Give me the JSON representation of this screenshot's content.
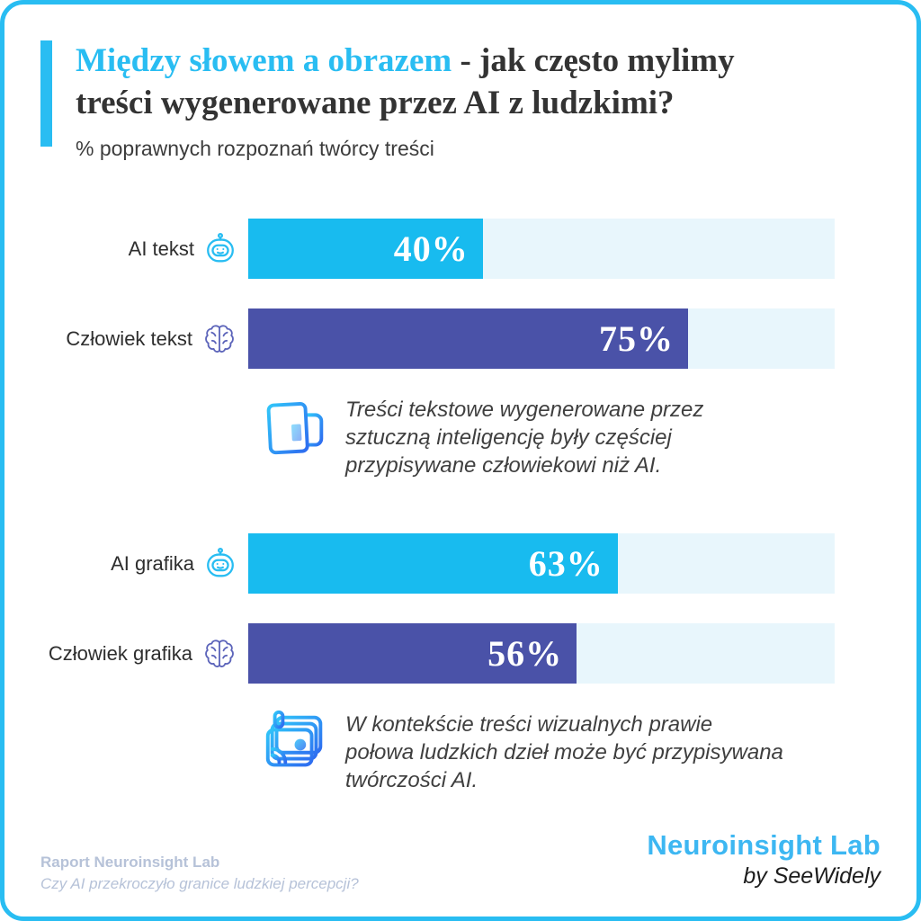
{
  "theme": {
    "accent": "#29bdf2",
    "cyan_bar": "#18bbef",
    "indigo_bar": "#4a52a8",
    "track_bg": "#e8f6fc",
    "ink": "#363636",
    "muted": "#b6c2d8",
    "brand_cyan": "#3db7f2",
    "icon_indigo": "#5c64ba"
  },
  "header": {
    "title_highlight": "Między słowem a obrazem",
    "title_rest_line1": " - jak często mylimy",
    "title_line2": "treści wygenerowane przez AI z ludzkimi?",
    "subtitle": "% poprawnych rozpoznań twórcy treści"
  },
  "chart_data": {
    "type": "bar",
    "orientation": "horizontal",
    "title": "Między słowem a obrazem - jak często mylimy treści wygenerowane przez AI z ludzkimi?",
    "subtitle": "% poprawnych rozpoznań twórcy treści",
    "categories": [
      "AI tekst",
      "Człowiek tekst",
      "AI grafika",
      "Człowiek grafika"
    ],
    "values": [
      40,
      75,
      63,
      56
    ],
    "value_labels": [
      "40%",
      "75%",
      "63%",
      "56%"
    ],
    "xlim": [
      0,
      100
    ],
    "grid": false,
    "bar_colors": [
      "#18bbef",
      "#4a52a8",
      "#18bbef",
      "#4a52a8"
    ],
    "track_color": "#e8f6fc",
    "category_icons": [
      "robot-icon",
      "brain-icon",
      "robot-icon",
      "brain-icon"
    ],
    "annotations": [
      {
        "after_category": "Człowiek tekst",
        "icon": "newspaper-icon",
        "text": "Treści tekstowe wygenerowane przez sztuczną inteligencję były częściej przypisywane człowiekowi niż AI."
      },
      {
        "after_category": "Człowiek grafika",
        "icon": "gallery-icon",
        "text": "W kontekście treści wizualnych prawie połowa ludzkich dzieł może być przypisywana twórczości AI."
      }
    ]
  },
  "footer": {
    "report_label": "Raport Neuroinsight Lab",
    "report_question": "Czy AI przekroczyło granice ludzkiej percepcji?",
    "brand": "Neuroinsight Lab",
    "byline": "by SeeWidely"
  }
}
